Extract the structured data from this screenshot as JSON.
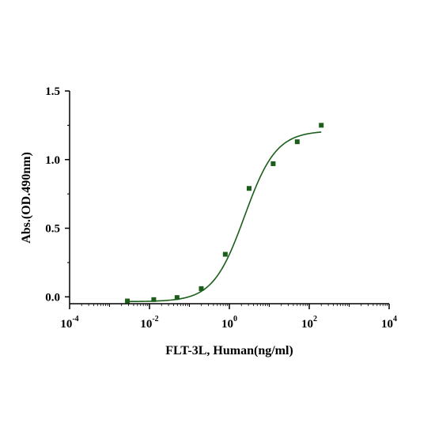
{
  "chart_data": {
    "type": "scatter",
    "title": "",
    "xlabel": "FLT-3L, Human(ng/ml)",
    "ylabel": "Abs.(OD.490nm)",
    "xscale": "log10",
    "xlim": [
      0.0001,
      10000
    ],
    "ylim": [
      -0.05,
      1.5
    ],
    "x_ticks": [
      {
        "value": 0.0001,
        "base": "10",
        "exp": "-4"
      },
      {
        "value": 0.01,
        "base": "10",
        "exp": "-2"
      },
      {
        "value": 1,
        "base": "10",
        "exp": "0"
      },
      {
        "value": 100,
        "base": "10",
        "exp": "2"
      },
      {
        "value": 10000,
        "base": "10",
        "exp": "4"
      }
    ],
    "y_ticks": [
      {
        "value": 0.0,
        "label": "0.0"
      },
      {
        "value": 0.5,
        "label": "0.5"
      },
      {
        "value": 1.0,
        "label": "1.0"
      },
      {
        "value": 1.5,
        "label": "1.5"
      }
    ],
    "grid": false,
    "legend": "none",
    "series": [
      {
        "color": "#1a5e1a",
        "marker": "square",
        "points": [
          {
            "x": 0.0028,
            "y": -0.03
          },
          {
            "x": 0.0128,
            "y": -0.02
          },
          {
            "x": 0.049,
            "y": -0.005
          },
          {
            "x": 0.198,
            "y": 0.06
          },
          {
            "x": 0.79,
            "y": 0.31
          },
          {
            "x": 3.12,
            "y": 0.79
          },
          {
            "x": 12.5,
            "y": 0.97
          },
          {
            "x": 50,
            "y": 1.13
          },
          {
            "x": 200,
            "y": 1.25
          }
        ]
      }
    ],
    "fit_curve": {
      "model": "4PL",
      "color": "#1a5e1a",
      "bottom": -0.035,
      "top": 1.21,
      "ec50": 2.4,
      "hill": 1.1,
      "x_range": [
        0.0028,
        200
      ]
    }
  }
}
